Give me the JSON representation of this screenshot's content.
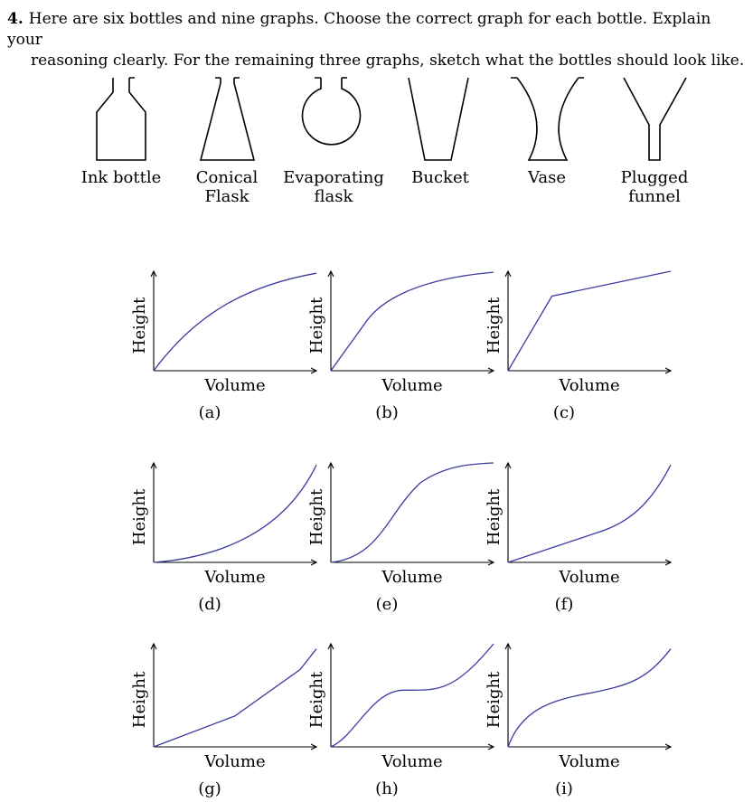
{
  "question": {
    "number": "4.",
    "line1": "Here are six bottles and nine graphs. Choose the correct graph for each bottle. Explain your",
    "line2": "reasoning clearly. For the remaining three graphs, sketch what the bottles should look like."
  },
  "bottles": [
    {
      "id": "ink",
      "label_lines": [
        "Ink bottle"
      ]
    },
    {
      "id": "conical",
      "label_lines": [
        "Conical",
        "Flask"
      ]
    },
    {
      "id": "evaporating",
      "label_lines": [
        "Evaporating",
        "flask"
      ]
    },
    {
      "id": "bucket",
      "label_lines": [
        "Bucket"
      ]
    },
    {
      "id": "vase",
      "label_lines": [
        "Vase"
      ]
    },
    {
      "id": "funnel",
      "label_lines": [
        "Plugged",
        "funnel"
      ]
    }
  ],
  "graphs": [
    {
      "id": "a",
      "caption": "(a)",
      "xlabel": "Volume",
      "ylabel": "Height",
      "shape": "concave"
    },
    {
      "id": "b",
      "caption": "(b)",
      "xlabel": "Volume",
      "ylabel": "Height",
      "shape": "linear-then-concave"
    },
    {
      "id": "c",
      "caption": "(c)",
      "xlabel": "Volume",
      "ylabel": "Height",
      "shape": "two-linear-steep-then-shallow"
    },
    {
      "id": "d",
      "caption": "(d)",
      "xlabel": "Volume",
      "ylabel": "Height",
      "shape": "convex"
    },
    {
      "id": "e",
      "caption": "(e)",
      "xlabel": "Volume",
      "ylabel": "Height",
      "shape": "s-curve"
    },
    {
      "id": "f",
      "caption": "(f)",
      "xlabel": "Volume",
      "ylabel": "Height",
      "shape": "linear-then-convex"
    },
    {
      "id": "g",
      "caption": "(g)",
      "xlabel": "Volume",
      "ylabel": "Height",
      "shape": "two-linear-shallow-then-steep"
    },
    {
      "id": "h",
      "caption": "(h)",
      "xlabel": "Volume",
      "ylabel": "Height",
      "shape": "cubic-plateau"
    },
    {
      "id": "i",
      "caption": "(i)",
      "xlabel": "Volume",
      "ylabel": "Height",
      "shape": "cubic-gentle"
    }
  ],
  "colors": {
    "curve": "#3b3ba0",
    "ink": "#000000"
  }
}
